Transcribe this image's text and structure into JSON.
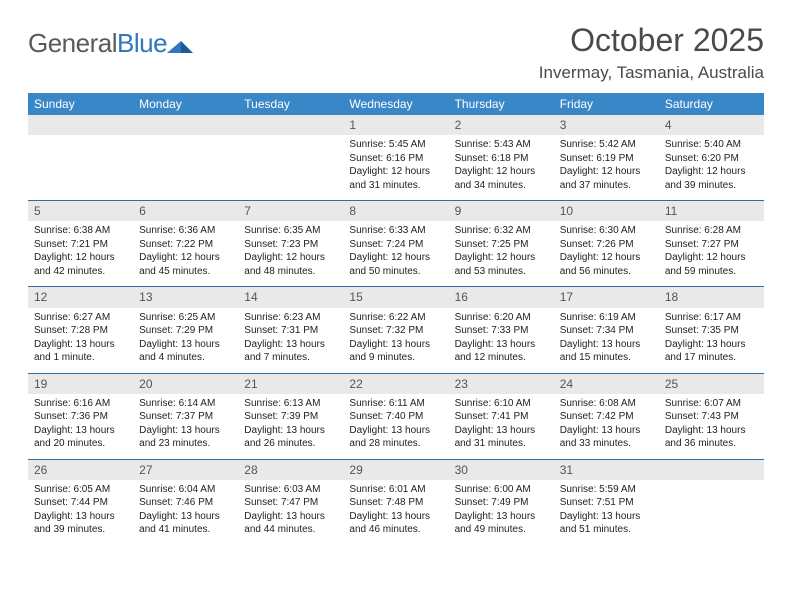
{
  "logo": {
    "text1": "General",
    "text2": "Blue"
  },
  "title": "October 2025",
  "location": "Invermay, Tasmania, Australia",
  "colors": {
    "header_bg": "#3a87c8",
    "week_border": "#2f6da8",
    "daynum_bg": "#e9e9e9",
    "text": "#333333",
    "title_text": "#4a4a4a"
  },
  "dow": [
    "Sunday",
    "Monday",
    "Tuesday",
    "Wednesday",
    "Thursday",
    "Friday",
    "Saturday"
  ],
  "weeks": [
    [
      null,
      null,
      null,
      {
        "n": "1",
        "sr": "Sunrise: 5:45 AM",
        "ss": "Sunset: 6:16 PM",
        "d1": "Daylight: 12 hours",
        "d2": "and 31 minutes."
      },
      {
        "n": "2",
        "sr": "Sunrise: 5:43 AM",
        "ss": "Sunset: 6:18 PM",
        "d1": "Daylight: 12 hours",
        "d2": "and 34 minutes."
      },
      {
        "n": "3",
        "sr": "Sunrise: 5:42 AM",
        "ss": "Sunset: 6:19 PM",
        "d1": "Daylight: 12 hours",
        "d2": "and 37 minutes."
      },
      {
        "n": "4",
        "sr": "Sunrise: 5:40 AM",
        "ss": "Sunset: 6:20 PM",
        "d1": "Daylight: 12 hours",
        "d2": "and 39 minutes."
      }
    ],
    [
      {
        "n": "5",
        "sr": "Sunrise: 6:38 AM",
        "ss": "Sunset: 7:21 PM",
        "d1": "Daylight: 12 hours",
        "d2": "and 42 minutes."
      },
      {
        "n": "6",
        "sr": "Sunrise: 6:36 AM",
        "ss": "Sunset: 7:22 PM",
        "d1": "Daylight: 12 hours",
        "d2": "and 45 minutes."
      },
      {
        "n": "7",
        "sr": "Sunrise: 6:35 AM",
        "ss": "Sunset: 7:23 PM",
        "d1": "Daylight: 12 hours",
        "d2": "and 48 minutes."
      },
      {
        "n": "8",
        "sr": "Sunrise: 6:33 AM",
        "ss": "Sunset: 7:24 PM",
        "d1": "Daylight: 12 hours",
        "d2": "and 50 minutes."
      },
      {
        "n": "9",
        "sr": "Sunrise: 6:32 AM",
        "ss": "Sunset: 7:25 PM",
        "d1": "Daylight: 12 hours",
        "d2": "and 53 minutes."
      },
      {
        "n": "10",
        "sr": "Sunrise: 6:30 AM",
        "ss": "Sunset: 7:26 PM",
        "d1": "Daylight: 12 hours",
        "d2": "and 56 minutes."
      },
      {
        "n": "11",
        "sr": "Sunrise: 6:28 AM",
        "ss": "Sunset: 7:27 PM",
        "d1": "Daylight: 12 hours",
        "d2": "and 59 minutes."
      }
    ],
    [
      {
        "n": "12",
        "sr": "Sunrise: 6:27 AM",
        "ss": "Sunset: 7:28 PM",
        "d1": "Daylight: 13 hours",
        "d2": "and 1 minute."
      },
      {
        "n": "13",
        "sr": "Sunrise: 6:25 AM",
        "ss": "Sunset: 7:29 PM",
        "d1": "Daylight: 13 hours",
        "d2": "and 4 minutes."
      },
      {
        "n": "14",
        "sr": "Sunrise: 6:23 AM",
        "ss": "Sunset: 7:31 PM",
        "d1": "Daylight: 13 hours",
        "d2": "and 7 minutes."
      },
      {
        "n": "15",
        "sr": "Sunrise: 6:22 AM",
        "ss": "Sunset: 7:32 PM",
        "d1": "Daylight: 13 hours",
        "d2": "and 9 minutes."
      },
      {
        "n": "16",
        "sr": "Sunrise: 6:20 AM",
        "ss": "Sunset: 7:33 PM",
        "d1": "Daylight: 13 hours",
        "d2": "and 12 minutes."
      },
      {
        "n": "17",
        "sr": "Sunrise: 6:19 AM",
        "ss": "Sunset: 7:34 PM",
        "d1": "Daylight: 13 hours",
        "d2": "and 15 minutes."
      },
      {
        "n": "18",
        "sr": "Sunrise: 6:17 AM",
        "ss": "Sunset: 7:35 PM",
        "d1": "Daylight: 13 hours",
        "d2": "and 17 minutes."
      }
    ],
    [
      {
        "n": "19",
        "sr": "Sunrise: 6:16 AM",
        "ss": "Sunset: 7:36 PM",
        "d1": "Daylight: 13 hours",
        "d2": "and 20 minutes."
      },
      {
        "n": "20",
        "sr": "Sunrise: 6:14 AM",
        "ss": "Sunset: 7:37 PM",
        "d1": "Daylight: 13 hours",
        "d2": "and 23 minutes."
      },
      {
        "n": "21",
        "sr": "Sunrise: 6:13 AM",
        "ss": "Sunset: 7:39 PM",
        "d1": "Daylight: 13 hours",
        "d2": "and 26 minutes."
      },
      {
        "n": "22",
        "sr": "Sunrise: 6:11 AM",
        "ss": "Sunset: 7:40 PM",
        "d1": "Daylight: 13 hours",
        "d2": "and 28 minutes."
      },
      {
        "n": "23",
        "sr": "Sunrise: 6:10 AM",
        "ss": "Sunset: 7:41 PM",
        "d1": "Daylight: 13 hours",
        "d2": "and 31 minutes."
      },
      {
        "n": "24",
        "sr": "Sunrise: 6:08 AM",
        "ss": "Sunset: 7:42 PM",
        "d1": "Daylight: 13 hours",
        "d2": "and 33 minutes."
      },
      {
        "n": "25",
        "sr": "Sunrise: 6:07 AM",
        "ss": "Sunset: 7:43 PM",
        "d1": "Daylight: 13 hours",
        "d2": "and 36 minutes."
      }
    ],
    [
      {
        "n": "26",
        "sr": "Sunrise: 6:05 AM",
        "ss": "Sunset: 7:44 PM",
        "d1": "Daylight: 13 hours",
        "d2": "and 39 minutes."
      },
      {
        "n": "27",
        "sr": "Sunrise: 6:04 AM",
        "ss": "Sunset: 7:46 PM",
        "d1": "Daylight: 13 hours",
        "d2": "and 41 minutes."
      },
      {
        "n": "28",
        "sr": "Sunrise: 6:03 AM",
        "ss": "Sunset: 7:47 PM",
        "d1": "Daylight: 13 hours",
        "d2": "and 44 minutes."
      },
      {
        "n": "29",
        "sr": "Sunrise: 6:01 AM",
        "ss": "Sunset: 7:48 PM",
        "d1": "Daylight: 13 hours",
        "d2": "and 46 minutes."
      },
      {
        "n": "30",
        "sr": "Sunrise: 6:00 AM",
        "ss": "Sunset: 7:49 PM",
        "d1": "Daylight: 13 hours",
        "d2": "and 49 minutes."
      },
      {
        "n": "31",
        "sr": "Sunrise: 5:59 AM",
        "ss": "Sunset: 7:51 PM",
        "d1": "Daylight: 13 hours",
        "d2": "and 51 minutes."
      },
      null
    ]
  ]
}
